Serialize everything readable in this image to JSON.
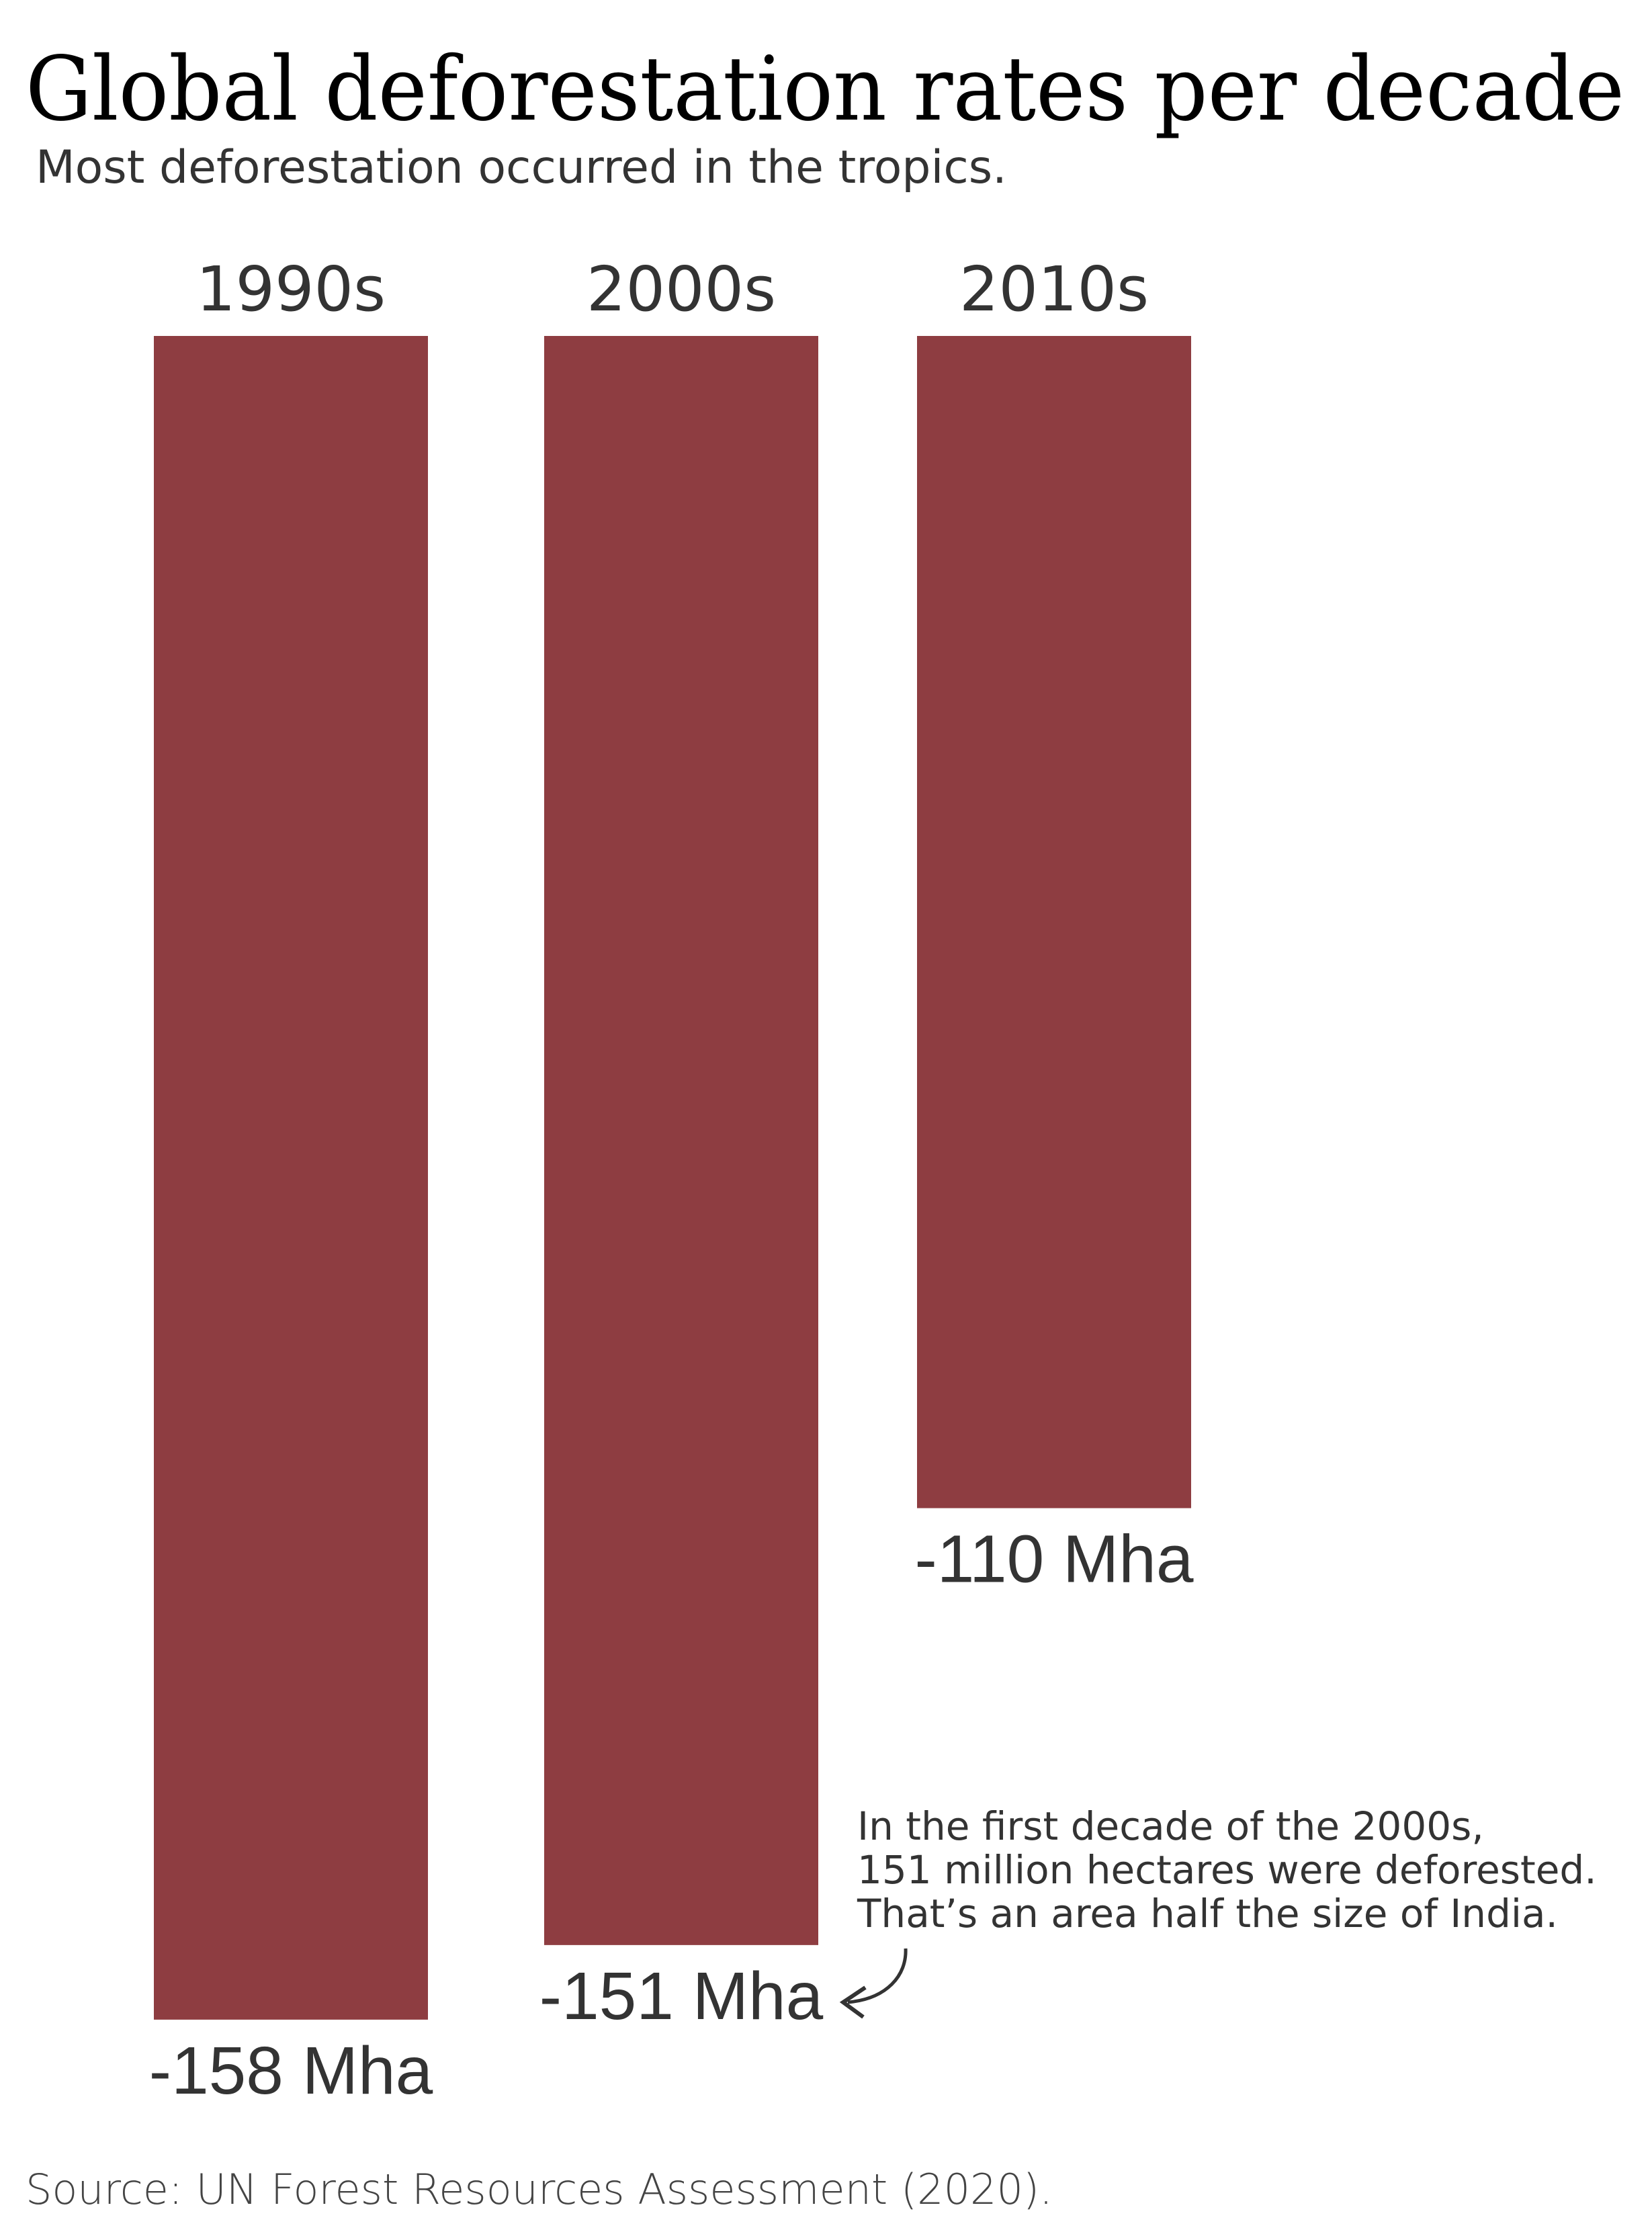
{
  "chart_data": {
    "type": "bar",
    "title": "Global deforestation rates per decade",
    "subtitle": "Most deforestation occurred in the tropics.",
    "categories": [
      "1990s",
      "2000s",
      "2010s"
    ],
    "values": [
      -158,
      -151,
      -110
    ],
    "value_labels": [
      "-158 Mha",
      "-151 Mha",
      "-110 Mha"
    ],
    "unit": "Mha",
    "bar_color": "#8e3d41",
    "grid": false,
    "annotation": {
      "lines": [
        "In the first decade of the 2000s,",
        "151 million hectares were deforested.",
        "That’s an area half the size of India."
      ],
      "target": "2000s"
    },
    "source": "Source: UN Forest Resources Assessment (2020)."
  }
}
